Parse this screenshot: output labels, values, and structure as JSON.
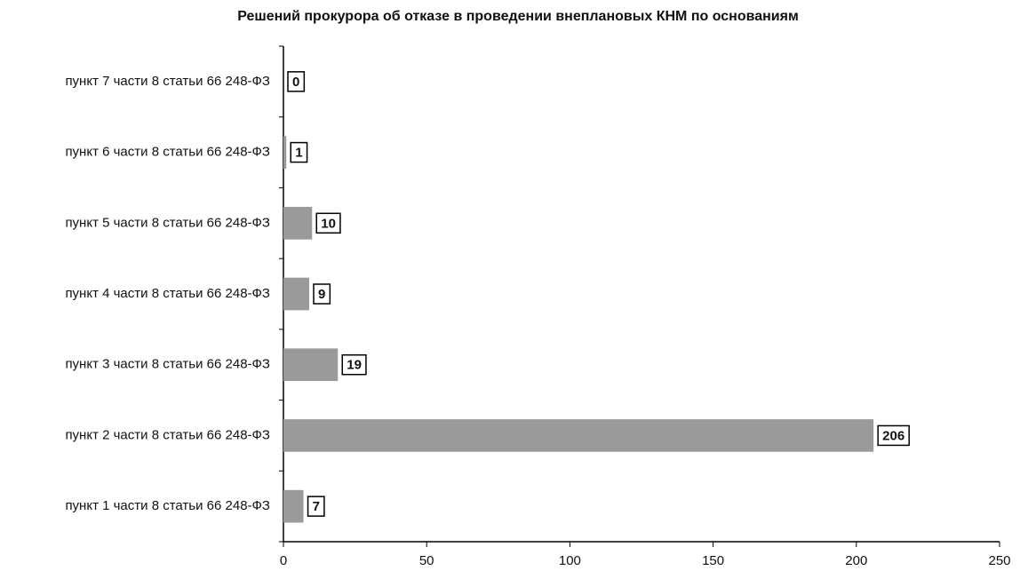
{
  "chart_data": {
    "type": "bar",
    "orientation": "horizontal",
    "title": "Решений прокурора об отказе в проведении внеплановых КНМ по основаниям",
    "categories": [
      "пункт 7 части 8 статьи 66 248-ФЗ",
      "пункт 6 части 8 статьи 66 248-ФЗ",
      "пункт 5 части 8 статьи 66 248-ФЗ",
      "пункт 4 части 8 статьи 66 248-ФЗ",
      "пункт 3 части 8 статьи 66 248-ФЗ",
      "пункт 2 части 8 статьи 66 248-ФЗ",
      "пункт 1 части 8 статьи 66 248-ФЗ"
    ],
    "values": [
      0,
      1,
      10,
      9,
      19,
      206,
      7
    ],
    "color": "#9a9a9a",
    "xlim": [
      0,
      250
    ],
    "xticks": [
      0,
      50,
      100,
      150,
      200,
      250
    ],
    "grid": false
  }
}
